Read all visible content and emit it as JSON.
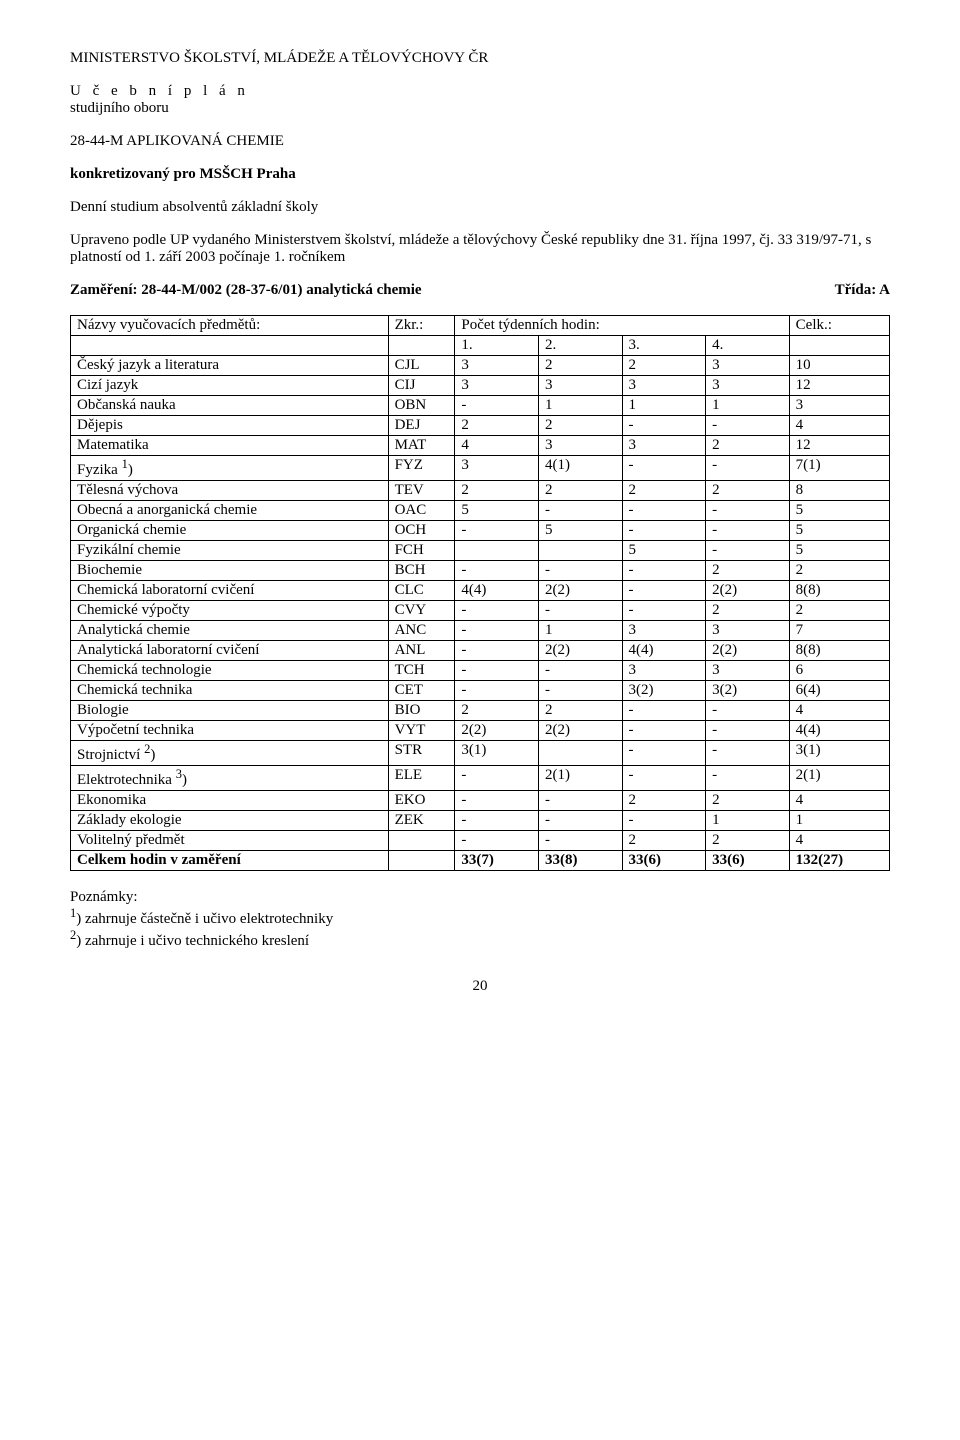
{
  "header": {
    "ministry": "MINISTERSTVO ŠKOLSTVÍ, MLÁDEŽE A TĚLOVÝCHOVY ČR",
    "spaced_title": "U č e b n í   p l á n",
    "sub1": "studijního oboru",
    "code": "28-44-M  APLIKOVANÁ CHEMIE",
    "konkret": "konkretizovaný pro MSŠCH Praha",
    "studium": "Denní studium absolventů základní školy",
    "upraveno": "Upraveno podle UP vydaného Ministerstvem školství, mládeže a tělovýchovy České republiky dne 31. října 1997, čj. 33 319/97-71, s platností od 1. září 2003 počínaje 1. ročníkem",
    "zamereni": "Zaměření:  28-44-M/002 (28-37-6/01)  analytická chemie",
    "trida": "Třída:  A"
  },
  "table": {
    "hdr_name": "Názvy vyučovacích předmětů:",
    "hdr_abbr": "Zkr.:",
    "hdr_week": "Počet týdenních hodin:",
    "hdr_total": "Celk.:",
    "year_labels": [
      "1.",
      "2.",
      "3.",
      "4."
    ],
    "rows": [
      {
        "n": "Český jazyk a literatura",
        "a": "CJL",
        "v": [
          "3",
          "2",
          "2",
          "3",
          "10"
        ]
      },
      {
        "n": "Cizí jazyk",
        "a": "CIJ",
        "v": [
          "3",
          "3",
          "3",
          "3",
          "12"
        ]
      },
      {
        "n": "Občanská nauka",
        "a": "OBN",
        "v": [
          "-",
          "1",
          "1",
          "1",
          "3"
        ]
      },
      {
        "n": "Dějepis",
        "a": "DEJ",
        "v": [
          "2",
          "2",
          "-",
          "-",
          "4"
        ]
      },
      {
        "n": "Matematika",
        "a": "MAT",
        "v": [
          "4",
          "3",
          "3",
          "2",
          "12"
        ]
      },
      {
        "n": "Fyzika <sup>1</sup>)",
        "a": "FYZ",
        "v": [
          "3",
          "4(1)",
          "-",
          "-",
          "7(1)"
        ]
      },
      {
        "n": "Tělesná výchova",
        "a": "TEV",
        "v": [
          "2",
          "2",
          "2",
          "2",
          "8"
        ]
      },
      {
        "n": "Obecná a anorganická chemie",
        "a": "OAC",
        "v": [
          "5",
          "-",
          "-",
          "-",
          "5"
        ]
      },
      {
        "n": "Organická chemie",
        "a": "OCH",
        "v": [
          "-",
          "5",
          "-",
          "-",
          "5"
        ]
      },
      {
        "n": "Fyzikální chemie",
        "a": "FCH",
        "v": [
          "",
          "",
          "5",
          "-",
          "5"
        ]
      },
      {
        "n": "Biochemie",
        "a": "BCH",
        "v": [
          "-",
          "-",
          "-",
          "2",
          "2"
        ]
      },
      {
        "n": "Chemická laboratorní cvičení",
        "a": "CLC",
        "v": [
          "4(4)",
          "2(2)",
          "-",
          "2(2)",
          "8(8)"
        ]
      },
      {
        "n": "Chemické výpočty",
        "a": "CVY",
        "v": [
          "-",
          "-",
          "-",
          "2",
          "2"
        ]
      },
      {
        "n": "Analytická chemie",
        "a": "ANC",
        "v": [
          "-",
          "1",
          "3",
          "3",
          "7"
        ]
      },
      {
        "n": "Analytická laboratorní cvičení",
        "a": "ANL",
        "v": [
          "-",
          "2(2)",
          "4(4)",
          "2(2)",
          "8(8)"
        ]
      },
      {
        "n": "Chemická technologie",
        "a": "TCH",
        "v": [
          "-",
          "-",
          "3",
          "3",
          "6"
        ]
      },
      {
        "n": "Chemická technika",
        "a": "CET",
        "v": [
          "-",
          "-",
          "3(2)",
          "3(2)",
          "6(4)"
        ]
      },
      {
        "n": "Biologie",
        "a": "BIO",
        "v": [
          "2",
          "2",
          "-",
          "-",
          "4"
        ]
      },
      {
        "n": "Výpočetní technika",
        "a": "VYT",
        "v": [
          "2(2)",
          "2(2)",
          "-",
          "-",
          "4(4)"
        ]
      },
      {
        "n": "Strojnictví <sup>2</sup>)",
        "a": "STR",
        "v": [
          "3(1)",
          "",
          "-",
          "-",
          "3(1)"
        ]
      },
      {
        "n": "Elektrotechnika <sup>3</sup>)",
        "a": "ELE",
        "v": [
          "-",
          "2(1)",
          "-",
          "-",
          "2(1)"
        ]
      },
      {
        "n": "Ekonomika",
        "a": "EKO",
        "v": [
          "-",
          "-",
          "2",
          "2",
          "4"
        ]
      },
      {
        "n": "Základy ekologie",
        "a": "ZEK",
        "v": [
          "-",
          "-",
          "-",
          "1",
          "1"
        ]
      },
      {
        "n": "Volitelný předmět",
        "a": "",
        "v": [
          "-",
          "-",
          "2",
          "2",
          "4"
        ]
      }
    ],
    "total_row": {
      "n": "Celkem hodin v zaměření",
      "a": "",
      "v": [
        "33(7)",
        "33(8)",
        "33(6)",
        "33(6)",
        "132(27)"
      ]
    }
  },
  "notes": {
    "title": "Poznámky:",
    "n1": ") zahrnuje částečně i učivo elektrotechniky",
    "n2": ") zahrnuje i učivo technického kreslení"
  },
  "page_number": "20"
}
